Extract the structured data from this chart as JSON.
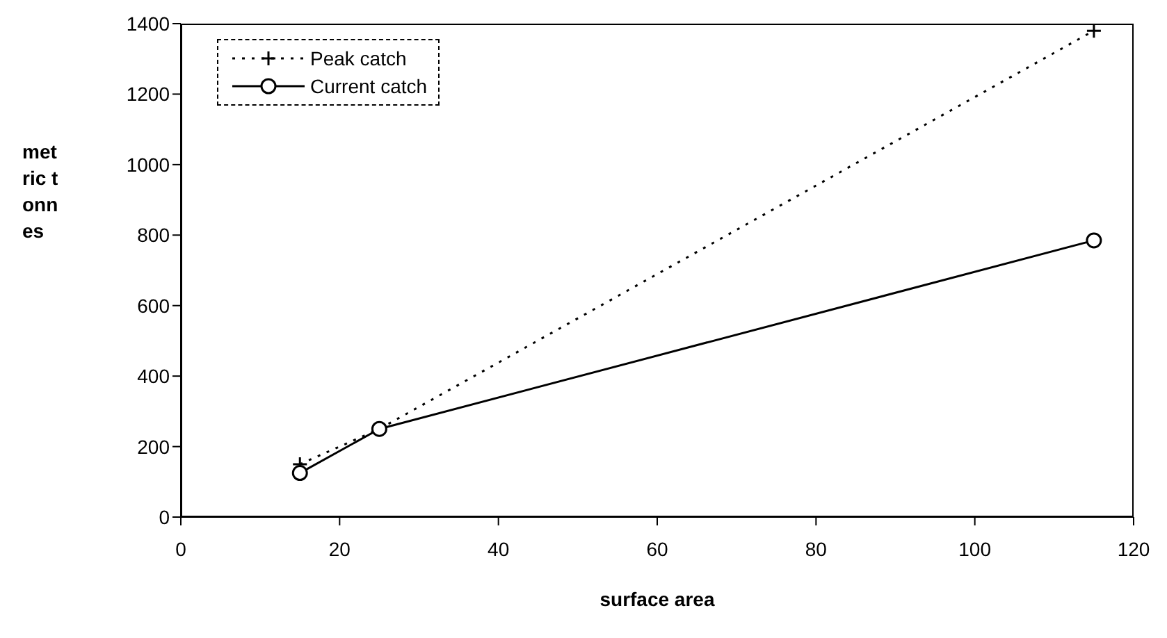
{
  "chart_data": {
    "type": "line",
    "xlabel": "surface area",
    "ylabel": "metric tonnes",
    "xlim": [
      0,
      120
    ],
    "xticks": [
      0,
      20,
      40,
      60,
      80,
      100,
      120
    ],
    "ylim": [
      0,
      1400
    ],
    "yticks": [
      0,
      200,
      400,
      600,
      800,
      1000,
      1200,
      1400
    ],
    "grid": false,
    "legend": "top left",
    "series": [
      {
        "name": "Peak catch",
        "color": "#000000",
        "x": [
          15,
          25,
          115
        ],
        "values": [
          150,
          250,
          1380
        ],
        "marker": "cross",
        "line_style": "dotted"
      },
      {
        "name": "Current catch",
        "color": "#000000",
        "x": [
          15,
          25,
          115
        ],
        "values": [
          125,
          250,
          785
        ],
        "marker": "circle",
        "line_style": "solid"
      }
    ]
  }
}
